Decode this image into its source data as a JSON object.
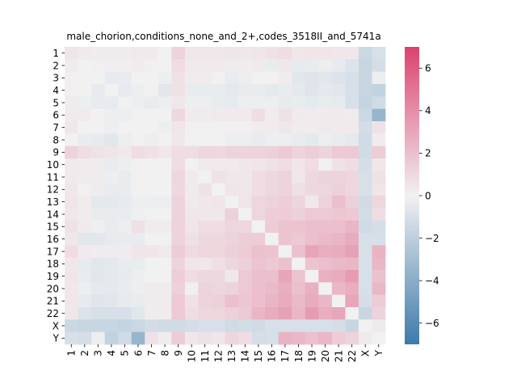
{
  "chart_data": {
    "type": "heatmap",
    "title": "male_chorion,conditions_none_and_2+,codes_3518II_and_5741a",
    "labels": [
      "1",
      "2",
      "3",
      "4",
      "5",
      "6",
      "7",
      "8",
      "9",
      "10",
      "11",
      "12",
      "13",
      "14",
      "15",
      "16",
      "17",
      "18",
      "19",
      "20",
      "21",
      "22",
      "X",
      "Y"
    ],
    "xlabel": "",
    "ylabel": "",
    "colorbar": {
      "min": -7,
      "max": 7,
      "ticks": [
        -6,
        -4,
        -2,
        0,
        2,
        4,
        6
      ]
    },
    "colors": {
      "negative": "#3d7aaa",
      "center": "#f1f1f2",
      "positive": "#dc426f"
    },
    "values": [
      [
        0.5,
        0.3,
        0.2,
        0.2,
        0.2,
        0.3,
        0.3,
        0.0,
        1.2,
        0.4,
        0.4,
        0.4,
        0.5,
        0.4,
        0.5,
        0.6,
        0.8,
        0.4,
        0.5,
        0.5,
        0.4,
        0.4,
        -1.5,
        -1.0
      ],
      [
        0.2,
        0.0,
        0.1,
        0.1,
        0.1,
        0.2,
        0.1,
        0.0,
        0.8,
        0.3,
        0.3,
        0.3,
        0.2,
        0.2,
        0.3,
        -0.3,
        0.4,
        -0.4,
        -0.3,
        -0.2,
        -0.4,
        -0.8,
        -1.6,
        -1.1
      ],
      [
        0.1,
        0.0,
        0.0,
        -0.4,
        -0.3,
        0.0,
        0.0,
        -0.2,
        0.6,
        0.2,
        0.2,
        0.1,
        -0.3,
        -0.2,
        0.0,
        0.0,
        0.2,
        -0.6,
        -0.7,
        -0.6,
        -0.8,
        -1.0,
        -1.6,
        -0.2
      ],
      [
        0.1,
        0.0,
        -0.4,
        0.0,
        -0.4,
        -0.2,
        0.0,
        -0.6,
        0.6,
        -0.3,
        -0.3,
        -0.3,
        -0.5,
        -0.3,
        -0.3,
        -0.5,
        -0.3,
        -0.5,
        -0.7,
        -0.5,
        -0.6,
        -1.0,
        -1.6,
        -1.8
      ],
      [
        0.2,
        -0.2,
        -0.4,
        -0.4,
        0.0,
        -0.2,
        -0.3,
        -0.2,
        0.4,
        -0.2,
        -0.2,
        -0.3,
        -0.4,
        -0.2,
        -0.2,
        -0.2,
        -0.4,
        -0.3,
        -0.5,
        -0.3,
        -0.4,
        -1.0,
        -1.7,
        -1.3
      ],
      [
        0.3,
        0.2,
        0.0,
        -0.2,
        -0.2,
        0.0,
        0.0,
        0.0,
        1.0,
        0.2,
        0.2,
        0.3,
        0.3,
        0.3,
        0.8,
        0.2,
        0.6,
        0.3,
        0.2,
        0.3,
        0.3,
        0.2,
        -1.5,
        -3.5
      ],
      [
        0.4,
        0.0,
        0.0,
        -0.2,
        0.0,
        0.0,
        0.0,
        -0.2,
        0.5,
        0.1,
        0.1,
        0.1,
        0.1,
        0.1,
        0.2,
        0.2,
        0.4,
        0.2,
        0.2,
        0.3,
        0.3,
        0.3,
        -1.2,
        0.6
      ],
      [
        0.0,
        -0.3,
        -0.4,
        -0.6,
        -0.2,
        0.0,
        -0.2,
        0.0,
        0.4,
        0.0,
        0.0,
        0.0,
        -0.2,
        -0.2,
        -0.3,
        -0.2,
        -0.2,
        -0.3,
        -0.5,
        -0.2,
        -0.3,
        -0.5,
        -1.3,
        0.2
      ],
      [
        1.2,
        0.8,
        0.6,
        0.5,
        0.3,
        0.8,
        0.6,
        0.4,
        0.8,
        0.8,
        1.1,
        1.0,
        1.2,
        1.2,
        1.2,
        1.3,
        1.6,
        1.2,
        1.4,
        1.2,
        1.6,
        1.6,
        -1.3,
        1.5
      ],
      [
        0.3,
        0.2,
        0.2,
        -0.3,
        -0.2,
        0.1,
        0.0,
        0.0,
        0.8,
        0.0,
        0.3,
        0.3,
        0.3,
        0.4,
        0.5,
        0.6,
        0.8,
        0.5,
        0.8,
        0.1,
        0.6,
        0.8,
        -1.1,
        0.4
      ],
      [
        0.3,
        0.2,
        0.2,
        -0.2,
        -0.3,
        0.1,
        0.0,
        0.0,
        1.1,
        0.3,
        0.0,
        0.6,
        0.4,
        0.4,
        0.8,
        1.0,
        1.2,
        0.4,
        1.0,
        1.2,
        1.2,
        1.1,
        -1.0,
        0.6
      ],
      [
        0.4,
        0.1,
        0.2,
        -0.3,
        -0.3,
        0.1,
        0.0,
        0.0,
        1.0,
        0.3,
        0.6,
        0.0,
        0.5,
        0.4,
        0.8,
        1.0,
        1.2,
        0.7,
        1.0,
        1.1,
        1.3,
        1.1,
        -1.0,
        0.5
      ],
      [
        0.5,
        0.2,
        -0.5,
        -0.5,
        -0.4,
        -0.2,
        -0.2,
        -0.2,
        1.2,
        0.3,
        0.4,
        0.5,
        0.0,
        0.5,
        1.1,
        1.2,
        1.4,
        1.1,
        0.4,
        1.2,
        2.0,
        1.3,
        -1.3,
        1.1
      ],
      [
        0.4,
        0.2,
        -0.3,
        -0.3,
        -0.3,
        -0.1,
        0.0,
        0.0,
        1.2,
        0.4,
        0.4,
        0.4,
        1.3,
        0.0,
        1.1,
        1.4,
        1.5,
        1.3,
        1.6,
        1.6,
        1.7,
        1.6,
        -1.2,
        0.8
      ],
      [
        0.6,
        0.3,
        -0.1,
        -0.3,
        -0.2,
        0.7,
        0.2,
        0.2,
        1.2,
        0.5,
        0.8,
        0.8,
        1.1,
        1.1,
        0.0,
        1.5,
        1.8,
        1.8,
        2.0,
        2.0,
        2.0,
        2.4,
        -1.3,
        -1.1
      ],
      [
        0.4,
        -0.6,
        -0.6,
        -0.4,
        -0.3,
        -0.3,
        0.0,
        0.0,
        1.2,
        0.7,
        1.0,
        1.0,
        1.2,
        1.4,
        1.5,
        0.0,
        1.8,
        1.6,
        2.0,
        2.2,
        2.4,
        2.8,
        -1.0,
        -1.0
      ],
      [
        0.8,
        0.3,
        0.2,
        0.2,
        0.2,
        0.5,
        0.5,
        0.3,
        1.5,
        0.9,
        1.1,
        1.1,
        1.3,
        1.5,
        1.9,
        1.8,
        0.0,
        1.9,
        3.1,
        2.7,
        2.8,
        3.2,
        -1.0,
        2.5
      ],
      [
        0.4,
        -0.4,
        -0.6,
        -0.5,
        -0.3,
        -0.3,
        0.0,
        0.0,
        1.2,
        0.5,
        0.4,
        0.7,
        1.1,
        1.3,
        1.8,
        1.6,
        1.9,
        0.0,
        1.8,
        2.0,
        2.2,
        2.3,
        -1.0,
        2.3
      ],
      [
        0.5,
        -0.3,
        -0.6,
        -0.5,
        -0.4,
        -0.2,
        0.0,
        0.0,
        1.4,
        0.8,
        1.0,
        1.0,
        0.4,
        1.6,
        2.0,
        2.0,
        3.1,
        1.8,
        0.0,
        2.6,
        2.8,
        3.4,
        -1.0,
        1.9
      ],
      [
        0.4,
        -0.2,
        -0.5,
        -0.5,
        -0.3,
        -0.2,
        0.2,
        0.2,
        1.3,
        0.1,
        1.2,
        1.1,
        1.2,
        1.6,
        2.0,
        2.2,
        2.7,
        2.0,
        2.6,
        0.0,
        2.3,
        2.7,
        -1.0,
        2.3
      ],
      [
        0.4,
        -0.4,
        -0.7,
        -0.6,
        -0.4,
        -0.3,
        0.2,
        0.2,
        1.6,
        0.6,
        1.2,
        1.3,
        2.0,
        1.7,
        2.0,
        2.4,
        2.8,
        2.2,
        2.8,
        2.3,
        0.0,
        3.0,
        -1.1,
        1.5
      ],
      [
        0.4,
        -0.8,
        -1.0,
        -1.0,
        -1.0,
        -0.6,
        0.2,
        0.2,
        1.6,
        0.8,
        1.1,
        1.1,
        1.3,
        1.6,
        2.4,
        2.8,
        3.2,
        2.3,
        3.4,
        2.7,
        3.0,
        0.0,
        -1.6,
        1.2
      ],
      [
        -1.5,
        -1.6,
        -1.6,
        -1.6,
        -1.7,
        -1.5,
        -1.2,
        -1.3,
        -1.3,
        -1.1,
        -1.0,
        -1.0,
        -1.3,
        -1.2,
        -1.3,
        -1.0,
        -1.0,
        -1.0,
        -1.0,
        -1.0,
        -1.1,
        -1.6,
        0.0,
        0.3
      ],
      [
        -1.0,
        -1.1,
        -0.2,
        -1.8,
        -1.3,
        -3.5,
        0.6,
        0.2,
        1.5,
        0.4,
        0.6,
        0.5,
        1.1,
        0.8,
        -1.1,
        -1.0,
        2.5,
        2.3,
        1.9,
        2.3,
        1.5,
        1.2,
        0.3,
        0.0
      ]
    ]
  }
}
